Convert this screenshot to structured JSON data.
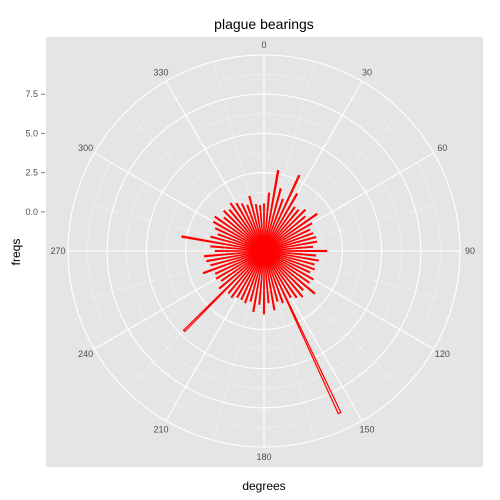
{
  "chart_data": {
    "type": "polar-bar",
    "title": "plague bearings",
    "xlabel": "degrees",
    "ylabel": "freqs",
    "radial_ticks": [
      "0.0",
      "2.5",
      "5.0",
      "7.5"
    ],
    "radial_tick_values": [
      0,
      2.5,
      5,
      7.5
    ],
    "radial_range": [
      -2.5,
      10
    ],
    "angle_ticks": [
      "0",
      "30",
      "60",
      "90",
      "120",
      "150",
      "180",
      "210",
      "240",
      "270",
      "300",
      "330"
    ],
    "angle_tick_values": [
      0,
      30,
      60,
      90,
      120,
      150,
      180,
      210,
      240,
      270,
      300,
      330
    ],
    "grid": true,
    "colors": {
      "panel": "#e5e5e5",
      "grid": "#ffffff",
      "grid_minor": "#f2f2f2",
      "bar": "#ff0000"
    },
    "series": [
      {
        "degrees": [
          0,
          5,
          10,
          15,
          20,
          25,
          30,
          35,
          40,
          45,
          50,
          55,
          60,
          65,
          70,
          75,
          80,
          85,
          90,
          95,
          100,
          105,
          110,
          115,
          120,
          125,
          130,
          135,
          140,
          145,
          150,
          155,
          160,
          165,
          170,
          175,
          180,
          185,
          190,
          195,
          200,
          205,
          210,
          215,
          220,
          225,
          230,
          235,
          240,
          245,
          250,
          255,
          260,
          265,
          270,
          275,
          280,
          285,
          290,
          295,
          300,
          305,
          310,
          315,
          320,
          325,
          330,
          335,
          340,
          345,
          350,
          355
        ],
        "freqs": [
          0.5,
          1.2,
          2.7,
          1.6,
          1.0,
          2.8,
          1.7,
          0.9,
          0.9,
          1.2,
          0.9,
          1.6,
          1.0,
          0.7,
          0.8,
          0.9,
          0.9,
          0.6,
          1.5,
          0.8,
          1.0,
          0.8,
          0.9,
          0.7,
          1.1,
          1.0,
          1.7,
          1.0,
          1.3,
          1.1,
          0.9,
          8.9,
          1.0,
          0.8,
          1.3,
          0.8,
          1.5,
          0.9,
          1.4,
          0.8,
          1.0,
          0.9,
          0.9,
          1.1,
          1.0,
          4.7,
          1.2,
          0.8,
          1.0,
          0.9,
          1.6,
          1.0,
          1.2,
          1.3,
          0.6,
          0.9,
          2.8,
          1.0,
          0.6,
          0.9,
          1.2,
          1.3,
          0.8,
          1.1,
          0.9,
          1.2,
          1.0,
          0.8,
          0.6,
          1.1,
          0.5,
          0.4
        ]
      }
    ]
  }
}
